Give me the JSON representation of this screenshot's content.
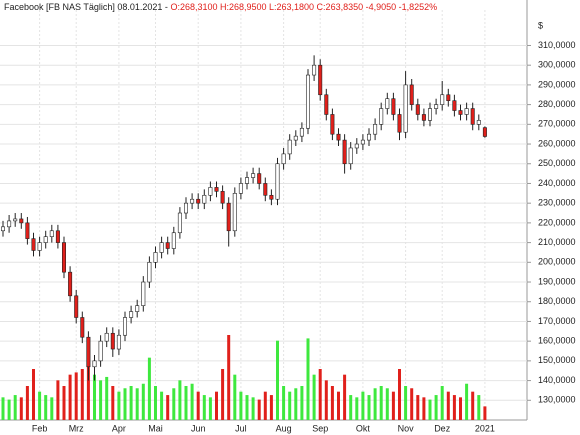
{
  "chart_data": {
    "type": "candlestick",
    "title": "Facebook [FB NAS  Täglich] 08.01.2021 - ",
    "quote": "O:268,3100 H:268,9500 L:263,1800 C:263,8350 -4,9050 -1,8252%",
    "y_unit": "$",
    "categories": [
      null,
      null,
      null,
      null,
      null,
      null,
      "Feb",
      null,
      null,
      null,
      null,
      null,
      "Mrz",
      null,
      null,
      null,
      null,
      null,
      null,
      "Apr",
      null,
      null,
      null,
      null,
      null,
      "Mai",
      null,
      null,
      null,
      null,
      null,
      null,
      "Jun",
      null,
      null,
      null,
      null,
      null,
      null,
      "Jul",
      null,
      null,
      null,
      null,
      null,
      null,
      "Aug",
      null,
      null,
      null,
      null,
      null,
      "Sep",
      null,
      null,
      null,
      null,
      null,
      null,
      "Okt",
      null,
      null,
      null,
      null,
      null,
      null,
      "Nov",
      null,
      null,
      null,
      null,
      null,
      "Dez",
      null,
      null,
      null,
      null,
      null,
      null,
      "2021"
    ],
    "open": [
      216,
      218,
      221,
      222,
      220,
      212,
      206,
      210,
      213,
      216,
      210,
      195,
      183,
      172,
      162,
      147,
      150,
      160,
      164,
      156,
      163,
      172,
      175,
      178,
      190,
      200,
      205,
      210,
      207,
      215,
      225,
      230,
      232,
      230,
      234,
      238,
      236,
      230,
      216,
      235,
      240,
      243,
      245,
      240,
      234,
      232,
      250,
      255,
      262,
      264,
      268,
      295,
      300,
      285,
      275,
      265,
      262,
      250,
      258,
      260,
      262,
      265,
      270,
      278,
      283,
      275,
      266,
      290,
      280,
      275,
      272,
      278,
      280,
      285,
      282,
      277,
      275,
      278,
      270,
      268.31
    ],
    "high": [
      221,
      224,
      225,
      225,
      223,
      215,
      213,
      216,
      219,
      219,
      213,
      198,
      186,
      175,
      165,
      153,
      163,
      167,
      167,
      166,
      175,
      178,
      181,
      193,
      203,
      208,
      213,
      213,
      218,
      228,
      233,
      235,
      235,
      237,
      241,
      241,
      239,
      233,
      238,
      243,
      246,
      248,
      248,
      243,
      237,
      253,
      258,
      265,
      267,
      271,
      298,
      305,
      303,
      288,
      278,
      268,
      265,
      261,
      263,
      265,
      268,
      273,
      281,
      286,
      286,
      278,
      297,
      293,
      283,
      278,
      281,
      283,
      292,
      288,
      285,
      280,
      281,
      281,
      275,
      268.95
    ],
    "low": [
      213,
      215,
      218,
      217,
      209,
      203,
      203,
      207,
      210,
      207,
      192,
      180,
      169,
      159,
      140,
      140,
      147,
      157,
      152,
      153,
      160,
      169,
      172,
      175,
      187,
      197,
      202,
      204,
      204,
      212,
      222,
      227,
      227,
      227,
      231,
      233,
      227,
      208,
      213,
      232,
      237,
      240,
      237,
      231,
      229,
      229,
      247,
      252,
      259,
      261,
      265,
      292,
      282,
      272,
      262,
      259,
      245,
      247,
      255,
      257,
      259,
      262,
      267,
      275,
      272,
      262,
      263,
      277,
      272,
      269,
      269,
      275,
      277,
      279,
      274,
      272,
      272,
      267,
      267,
      263.18
    ],
    "close": [
      218,
      221,
      222,
      220,
      212,
      206,
      210,
      213,
      216,
      210,
      195,
      183,
      172,
      162,
      147,
      150,
      160,
      164,
      156,
      163,
      172,
      175,
      178,
      190,
      200,
      205,
      210,
      207,
      215,
      225,
      230,
      232,
      230,
      234,
      238,
      236,
      230,
      216,
      235,
      240,
      243,
      245,
      240,
      234,
      232,
      250,
      255,
      262,
      264,
      268,
      295,
      300,
      285,
      275,
      265,
      262,
      250,
      258,
      260,
      262,
      265,
      270,
      278,
      283,
      275,
      266,
      290,
      280,
      275,
      272,
      278,
      280,
      285,
      282,
      277,
      275,
      278,
      270,
      272,
      263.835
    ],
    "volume": [
      20,
      18,
      22,
      20,
      30,
      45,
      25,
      22,
      20,
      35,
      30,
      40,
      42,
      45,
      50,
      40,
      35,
      38,
      30,
      25,
      28,
      30,
      28,
      32,
      55,
      30,
      25,
      22,
      28,
      35,
      30,
      32,
      25,
      22,
      20,
      25,
      45,
      75,
      40,
      25,
      22,
      20,
      18,
      25,
      22,
      70,
      30,
      25,
      28,
      30,
      72,
      40,
      45,
      35,
      30,
      25,
      40,
      22,
      20,
      25,
      22,
      28,
      30,
      28,
      25,
      45,
      30,
      28,
      22,
      20,
      18,
      22,
      30,
      25,
      22,
      20,
      32,
      25,
      22,
      12
    ],
    "ylim": [
      120,
      328
    ],
    "yticks": [
      {
        "value": 130,
        "label": "130,0000"
      },
      {
        "value": 140,
        "label": "140,0000"
      },
      {
        "value": 150,
        "label": "150,0000"
      },
      {
        "value": 160,
        "label": "160,0000"
      },
      {
        "value": 170,
        "label": "170,0000"
      },
      {
        "value": 180,
        "label": "180,0000"
      },
      {
        "value": 190,
        "label": "190,0000"
      },
      {
        "value": 200,
        "label": "200,0000"
      },
      {
        "value": 210,
        "label": "210,0000"
      },
      {
        "value": 220,
        "label": "220,0000"
      },
      {
        "value": 230,
        "label": "230,0000"
      },
      {
        "value": 240,
        "label": "240,0000"
      },
      {
        "value": 250,
        "label": "250,0000"
      },
      {
        "value": 260,
        "label": "260,0000"
      },
      {
        "value": 270,
        "label": "270,0000"
      },
      {
        "value": 280,
        "label": "280,0000"
      },
      {
        "value": 290,
        "label": "290,0000"
      },
      {
        "value": 300,
        "label": "300,0000"
      },
      {
        "value": 310,
        "label": "310,0000"
      }
    ],
    "grid": true,
    "up_color": "#ffffff",
    "down_color": "#e0201b",
    "volume_up_color": "#3ee83e",
    "volume_down_color": "#e0201b"
  }
}
